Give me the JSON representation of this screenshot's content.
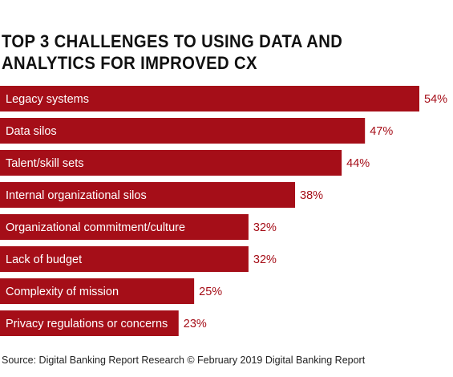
{
  "title": "TOP 3 CHALLENGES TO USING DATA AND ANALYTICS FOR IMPROVED CX",
  "source": "Source: Digital Banking Report Research © February 2019 Digital Banking Report",
  "colors": {
    "bar": "#a50e18",
    "bar_label": "#ffffff",
    "value_label": "#a50e18"
  },
  "chart_data": {
    "type": "bar",
    "orientation": "horizontal",
    "title": "TOP 3 CHALLENGES TO USING DATA AND ANALYTICS FOR IMPROVED CX",
    "categories": [
      "Legacy systems",
      "Data silos",
      "Talent/skill sets",
      "Internal organizational silos",
      "Organizational commitment/culture",
      "Lack of budget",
      "Complexity of mission",
      "Privacy regulations or concerns"
    ],
    "values": [
      54,
      47,
      44,
      38,
      32,
      32,
      25,
      23
    ],
    "value_labels": [
      "54%",
      "47%",
      "44%",
      "38%",
      "32%",
      "32%",
      "25%",
      "23%"
    ],
    "unit": "%",
    "grid": false,
    "legend": "none"
  }
}
